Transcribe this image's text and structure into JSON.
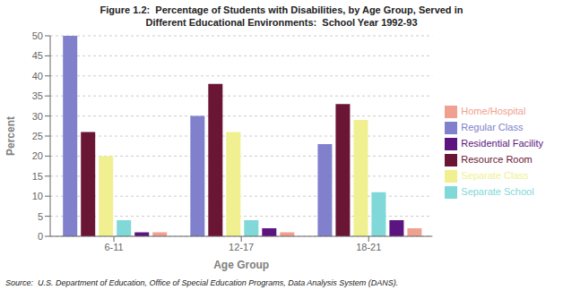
{
  "chart_data": {
    "type": "bar",
    "title": "Figure 1.2:  Percentage of Students with Disabilities, by Age Group, Served in",
    "subtitle": "Different Educational Environments:  School Year 1992-93",
    "xlabel": "Age Group",
    "ylabel": "Percent",
    "categories": [
      "6-11",
      "12-17",
      "18-21"
    ],
    "series": [
      {
        "name": "Regular Class",
        "color": "#8080cc",
        "values": [
          50,
          30,
          23
        ]
      },
      {
        "name": "Resource Room",
        "color": "#6b1535",
        "values": [
          26,
          38,
          33
        ]
      },
      {
        "name": "Separate Class",
        "color": "#f0f090",
        "values": [
          20,
          26,
          29
        ]
      },
      {
        "name": "Separate School",
        "color": "#80d8d8",
        "values": [
          4,
          4,
          11
        ]
      },
      {
        "name": "Residential Facility",
        "color": "#5c1580",
        "values": [
          1,
          2,
          4
        ]
      },
      {
        "name": "Home/Hospital",
        "color": "#f0a090",
        "values": [
          1,
          1,
          2
        ]
      }
    ],
    "ylim": [
      0,
      50
    ],
    "yticks": [
      0,
      5,
      10,
      15,
      20,
      25,
      30,
      35,
      40,
      45,
      50
    ],
    "grid": true,
    "legend": "right",
    "annotations": [
      "Source:  U.S. Department of Education, Office of Special Education Programs, Data Analysis System (DANS)."
    ]
  }
}
